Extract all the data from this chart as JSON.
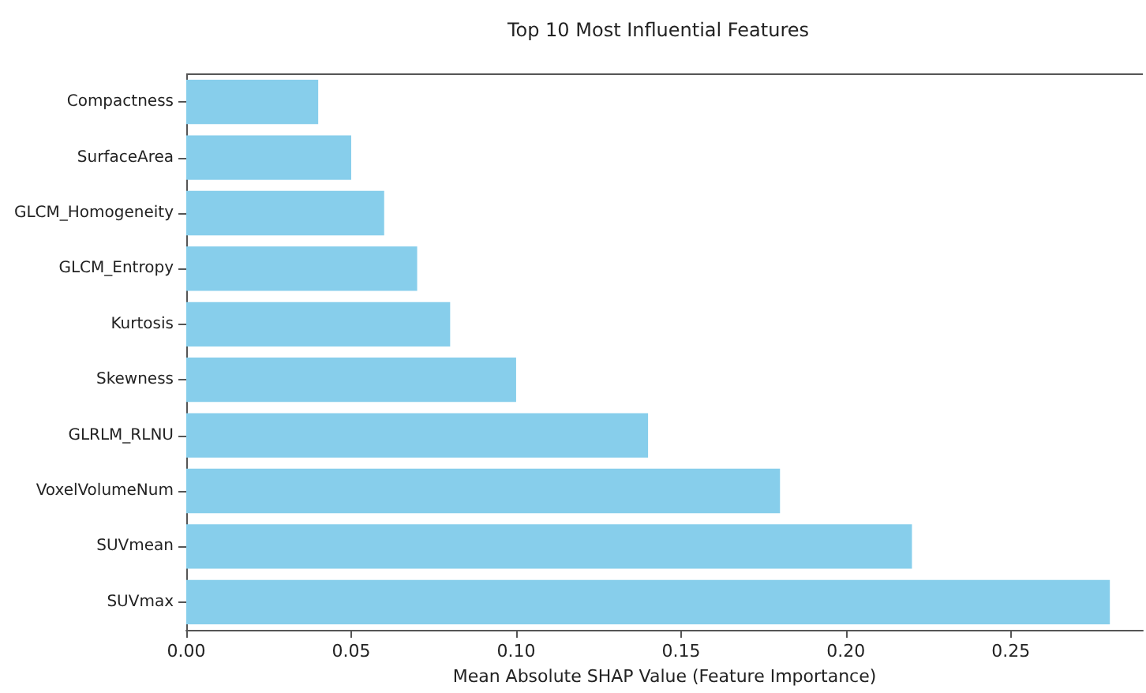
{
  "chart_data": {
    "type": "bar",
    "orientation": "horizontal",
    "title": "Top 10 Most Influential Features",
    "xlabel": "Mean Absolute SHAP Value (Feature Importance)",
    "categories": [
      "Compactness",
      "SurfaceArea",
      "GLCM_Homogeneity",
      "GLCM_Entropy",
      "Kurtosis",
      "Skewness",
      "GLRLM_RLNU",
      "VoxelVolumeNum",
      "SUVmean",
      "SUVmax"
    ],
    "values": [
      0.04,
      0.05,
      0.06,
      0.07,
      0.08,
      0.1,
      0.14,
      0.18,
      0.22,
      0.28
    ],
    "color": "#87ceeb",
    "xlim": [
      0,
      0.29
    ],
    "xticks": [
      {
        "value": 0,
        "label": "0.00"
      },
      {
        "value": 0.05,
        "label": "0.05"
      },
      {
        "value": 0.1,
        "label": "0.10"
      },
      {
        "value": 0.15,
        "label": "0.15"
      },
      {
        "value": 0.2,
        "label": "0.20"
      },
      {
        "value": 0.25,
        "label": "0.25"
      }
    ],
    "grid": false
  }
}
